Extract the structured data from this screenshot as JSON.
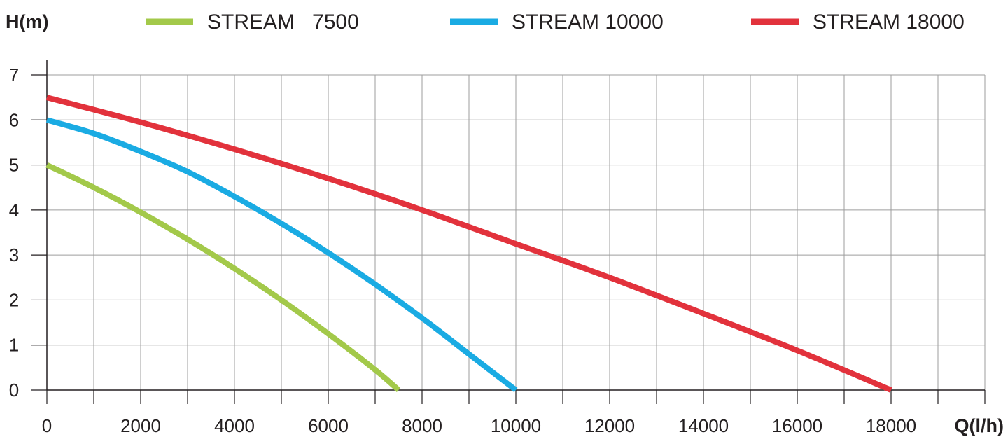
{
  "chart_data": {
    "type": "line",
    "ylabel": "H(m)",
    "xlabel": "Q(l/h)",
    "xlim": [
      0,
      20000
    ],
    "ylim": [
      0,
      7
    ],
    "x_ticks": [
      "0",
      "2000",
      "4000",
      "6000",
      "8000",
      "10000",
      "12000",
      "14000",
      "16000",
      "18000"
    ],
    "y_ticks": [
      "0",
      "1",
      "2",
      "3",
      "4",
      "5",
      "6",
      "7"
    ],
    "grid": true,
    "legend_position": "top",
    "series": [
      {
        "name": "STREAM   7500",
        "color": "#a3c94a",
        "x": [
          0,
          1000,
          2000,
          3000,
          4000,
          5000,
          6000,
          7000,
          7500
        ],
        "y": [
          5.0,
          4.5,
          3.95,
          3.35,
          2.7,
          2.0,
          1.25,
          0.45,
          0.0
        ]
      },
      {
        "name": "STREAM 10000",
        "color": "#1aabe3",
        "x": [
          0,
          1000,
          2000,
          3000,
          4000,
          5000,
          6000,
          7000,
          8000,
          9000,
          10000
        ],
        "y": [
          6.0,
          5.7,
          5.3,
          4.85,
          4.3,
          3.7,
          3.05,
          2.35,
          1.6,
          0.8,
          0.0
        ]
      },
      {
        "name": "STREAM 18000",
        "color": "#e2323c",
        "x": [
          0,
          2000,
          4000,
          6000,
          8000,
          10000,
          12000,
          14000,
          16000,
          18000
        ],
        "y": [
          6.5,
          5.95,
          5.35,
          4.7,
          4.0,
          3.25,
          2.5,
          1.7,
          0.88,
          0.0
        ]
      }
    ]
  }
}
